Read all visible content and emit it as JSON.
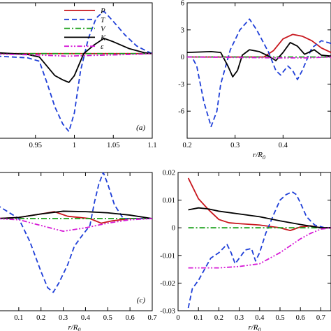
{
  "chart_data": [
    {
      "type": "line",
      "panel": "(a)",
      "xlabel": "",
      "ylabel": "",
      "xlim": [
        0.9,
        1.1
      ],
      "ylim": [
        -10,
        6
      ],
      "xticks": [
        0.95,
        1,
        1.05,
        1.1
      ],
      "yticks": [],
      "legend": {
        "placement": "top-right"
      },
      "series": [
        {
          "name": "P",
          "color": "#c8161d",
          "dash": "solid",
          "points": [
            [
              0.9,
              0
            ],
            [
              0.95,
              0
            ],
            [
              1.0,
              0
            ],
            [
              1.05,
              0
            ],
            [
              1.1,
              0
            ]
          ]
        },
        {
          "name": "T",
          "color": "#1f3fd8",
          "dash": "dashed",
          "points": [
            [
              0.9,
              -0.3
            ],
            [
              0.94,
              -0.5
            ],
            [
              0.955,
              -0.9
            ],
            [
              0.965,
              -3.5
            ],
            [
              0.975,
              -6.3
            ],
            [
              0.985,
              -8.3
            ],
            [
              0.993,
              -9.2
            ],
            [
              1.0,
              -7.0
            ],
            [
              1.008,
              -2.0
            ],
            [
              1.018,
              1.8
            ],
            [
              1.028,
              4.2
            ],
            [
              1.038,
              5.0
            ],
            [
              1.05,
              3.8
            ],
            [
              1.065,
              2.2
            ],
            [
              1.08,
              0.9
            ],
            [
              1.095,
              0.2
            ],
            [
              1.1,
              0
            ]
          ]
        },
        {
          "name": "V",
          "color": "#1aa01a",
          "dash": "dashdot",
          "points": [
            [
              0.9,
              0
            ],
            [
              0.95,
              0
            ],
            [
              1.0,
              0
            ],
            [
              1.05,
              0
            ],
            [
              1.1,
              0
            ]
          ]
        },
        {
          "name": "K",
          "color": "#000000",
          "dash": "solid",
          "points": [
            [
              0.9,
              0.1
            ],
            [
              0.94,
              -0.1
            ],
            [
              0.955,
              -0.4
            ],
            [
              0.965,
              -1.5
            ],
            [
              0.975,
              -2.6
            ],
            [
              0.985,
              -3.1
            ],
            [
              0.993,
              -3.4
            ],
            [
              1.0,
              -2.6
            ],
            [
              1.012,
              0.0
            ],
            [
              1.025,
              1.0
            ],
            [
              1.038,
              1.8
            ],
            [
              1.05,
              1.4
            ],
            [
              1.07,
              0.6
            ],
            [
              1.09,
              0.1
            ],
            [
              1.1,
              0
            ]
          ]
        },
        {
          "name": "ε",
          "color": "#d61ad6",
          "dash": "dashdotdot",
          "points": [
            [
              0.9,
              -0.05
            ],
            [
              0.95,
              -0.15
            ],
            [
              0.99,
              -0.3
            ],
            [
              1.03,
              -0.2
            ],
            [
              1.08,
              -0.08
            ],
            [
              1.1,
              0
            ]
          ]
        }
      ]
    },
    {
      "type": "line",
      "panel": "",
      "xlabel": "r/R0",
      "ylabel": "",
      "xlim": [
        0.2,
        0.5
      ],
      "ylim": [
        -9,
        6
      ],
      "xticks": [
        0.2,
        0.3,
        0.4
      ],
      "yticks": [
        -6,
        -3,
        0,
        3,
        6
      ],
      "series": [
        {
          "name": "P",
          "color": "#c8161d",
          "dash": "solid",
          "points": [
            [
              0.2,
              0
            ],
            [
              0.36,
              0
            ],
            [
              0.38,
              0.7
            ],
            [
              0.4,
              2.0
            ],
            [
              0.42,
              2.5
            ],
            [
              0.44,
              2.3
            ],
            [
              0.46,
              1.8
            ],
            [
              0.48,
              1.0
            ],
            [
              0.5,
              0.5
            ]
          ]
        },
        {
          "name": "T",
          "color": "#1f3fd8",
          "dash": "dashed",
          "points": [
            [
              0.2,
              0
            ],
            [
              0.21,
              0
            ],
            [
              0.22,
              -1.0
            ],
            [
              0.235,
              -5.0
            ],
            [
              0.25,
              -7.7
            ],
            [
              0.262,
              -6.0
            ],
            [
              0.27,
              -3.0
            ],
            [
              0.29,
              0.8
            ],
            [
              0.31,
              3.0
            ],
            [
              0.33,
              4.2
            ],
            [
              0.345,
              3.0
            ],
            [
              0.36,
              1.5
            ],
            [
              0.37,
              0.5
            ],
            [
              0.385,
              -1.5
            ],
            [
              0.395,
              -2.0
            ],
            [
              0.41,
              -1.0
            ],
            [
              0.42,
              -1.5
            ],
            [
              0.43,
              -2.5
            ],
            [
              0.44,
              -1.5
            ],
            [
              0.46,
              1.0
            ],
            [
              0.48,
              1.8
            ],
            [
              0.5,
              1.5
            ]
          ]
        },
        {
          "name": "V",
          "color": "#1aa01a",
          "dash": "dashdot",
          "points": [
            [
              0.2,
              0
            ],
            [
              0.3,
              0
            ],
            [
              0.4,
              0
            ],
            [
              0.5,
              0
            ]
          ]
        },
        {
          "name": "K",
          "color": "#000000",
          "dash": "solid",
          "points": [
            [
              0.2,
              0.5
            ],
            [
              0.25,
              0.6
            ],
            [
              0.27,
              0.5
            ],
            [
              0.285,
              -1.0
            ],
            [
              0.295,
              -2.2
            ],
            [
              0.305,
              -1.5
            ],
            [
              0.315,
              0.2
            ],
            [
              0.33,
              0.8
            ],
            [
              0.35,
              0.6
            ],
            [
              0.37,
              0.1
            ],
            [
              0.385,
              -0.4
            ],
            [
              0.4,
              0.5
            ],
            [
              0.415,
              1.6
            ],
            [
              0.43,
              1.2
            ],
            [
              0.445,
              0.3
            ],
            [
              0.465,
              0.8
            ],
            [
              0.48,
              0.2
            ],
            [
              0.5,
              0.1
            ]
          ]
        },
        {
          "name": "ε",
          "color": "#d61ad6",
          "dash": "dashdotdot",
          "points": [
            [
              0.2,
              0
            ],
            [
              0.3,
              -0.05
            ],
            [
              0.4,
              -0.1
            ],
            [
              0.45,
              -0.1
            ],
            [
              0.5,
              0
            ]
          ]
        }
      ]
    },
    {
      "type": "line",
      "panel": "(c)",
      "xlabel": "r/R0",
      "ylabel": "",
      "xlim": [
        0.0,
        0.7
      ],
      "ylim": [
        -0.04,
        0.02
      ],
      "xticks": [
        0.1,
        0.2,
        0.3,
        0.4,
        0.5,
        0.6,
        0.7
      ],
      "yticks": [],
      "series": [
        {
          "name": "P",
          "color": "#c8161d",
          "dash": "solid",
          "points": [
            [
              0.0,
              0.0
            ],
            [
              0.1,
              0.0005
            ],
            [
              0.2,
              0.002
            ],
            [
              0.26,
              0.003
            ],
            [
              0.32,
              0.001
            ],
            [
              0.42,
              0.0
            ],
            [
              0.47,
              -0.002
            ],
            [
              0.52,
              -0.001
            ],
            [
              0.6,
              0.0
            ],
            [
              0.7,
              0.0
            ]
          ]
        },
        {
          "name": "T",
          "color": "#1f3fd8",
          "dash": "dashed",
          "points": [
            [
              0.0,
              0.006
            ],
            [
              0.05,
              0.003
            ],
            [
              0.1,
              0.0
            ],
            [
              0.15,
              -0.01
            ],
            [
              0.2,
              -0.023
            ],
            [
              0.23,
              -0.03
            ],
            [
              0.255,
              -0.032
            ],
            [
              0.28,
              -0.028
            ],
            [
              0.32,
              -0.02
            ],
            [
              0.35,
              -0.012
            ],
            [
              0.38,
              -0.008
            ],
            [
              0.42,
              -0.003
            ],
            [
              0.44,
              0.007
            ],
            [
              0.46,
              0.015
            ],
            [
              0.48,
              0.02
            ],
            [
              0.5,
              0.015
            ],
            [
              0.53,
              0.006
            ],
            [
              0.57,
              0.0
            ],
            [
              0.62,
              0.0
            ],
            [
              0.7,
              0.0
            ]
          ]
        },
        {
          "name": "V",
          "color": "#1aa01a",
          "dash": "dashdot",
          "points": [
            [
              0.0,
              0
            ],
            [
              0.35,
              0
            ],
            [
              0.7,
              0
            ]
          ]
        },
        {
          "name": "K",
          "color": "#000000",
          "dash": "solid",
          "points": [
            [
              0.0,
              0.0
            ],
            [
              0.1,
              0.0005
            ],
            [
              0.2,
              0.002
            ],
            [
              0.3,
              0.0032
            ],
            [
              0.4,
              0.003
            ],
            [
              0.5,
              0.0025
            ],
            [
              0.6,
              0.0015
            ],
            [
              0.7,
              0.0
            ]
          ]
        },
        {
          "name": "ε",
          "color": "#d61ad6",
          "dash": "dashdotdot",
          "points": [
            [
              0.0,
              0.0
            ],
            [
              0.1,
              -0.0005
            ],
            [
              0.2,
              -0.003
            ],
            [
              0.3,
              -0.0055
            ],
            [
              0.4,
              -0.004
            ],
            [
              0.5,
              -0.002
            ],
            [
              0.6,
              -0.0005
            ],
            [
              0.7,
              0.0
            ]
          ]
        }
      ]
    },
    {
      "type": "line",
      "panel": "",
      "xlabel": "r/R0",
      "ylabel": "",
      "xlim": [
        0.0,
        0.75
      ],
      "ylim": [
        -0.03,
        0.02
      ],
      "xticks": [
        0,
        0.1,
        0.2,
        0.3,
        0.4,
        0.5,
        0.6,
        0.7
      ],
      "yticks": [
        -0.03,
        -0.02,
        -0.01,
        0,
        0.01,
        0.02
      ],
      "series": [
        {
          "name": "P",
          "color": "#c8161d",
          "dash": "solid",
          "points": [
            [
              0.05,
              0.018
            ],
            [
              0.1,
              0.0105
            ],
            [
              0.15,
              0.0065
            ],
            [
              0.2,
              0.003
            ],
            [
              0.25,
              0.0018
            ],
            [
              0.3,
              0.0015
            ],
            [
              0.4,
              0.001
            ],
            [
              0.45,
              0.0005
            ],
            [
              0.5,
              0.0
            ],
            [
              0.55,
              -0.001
            ],
            [
              0.6,
              0.0003
            ],
            [
              0.65,
              0.0007
            ],
            [
              0.7,
              0.0
            ],
            [
              0.75,
              0.0
            ]
          ]
        },
        {
          "name": "T",
          "color": "#1f3fd8",
          "dash": "dashed",
          "points": [
            [
              0.05,
              -0.029
            ],
            [
              0.07,
              -0.022
            ],
            [
              0.1,
              -0.019
            ],
            [
              0.13,
              -0.015
            ],
            [
              0.16,
              -0.011
            ],
            [
              0.2,
              -0.009
            ],
            [
              0.24,
              -0.006
            ],
            [
              0.26,
              -0.009
            ],
            [
              0.28,
              -0.013
            ],
            [
              0.3,
              -0.011
            ],
            [
              0.33,
              -0.008
            ],
            [
              0.36,
              -0.0075
            ],
            [
              0.38,
              -0.012
            ],
            [
              0.4,
              -0.009
            ],
            [
              0.43,
              -0.002
            ],
            [
              0.47,
              0.005
            ],
            [
              0.5,
              0.01
            ],
            [
              0.53,
              0.012
            ],
            [
              0.56,
              0.013
            ],
            [
              0.58,
              0.012
            ],
            [
              0.6,
              0.009
            ],
            [
              0.63,
              0.004
            ],
            [
              0.67,
              0.001
            ],
            [
              0.72,
              0.0
            ],
            [
              0.75,
              0.0
            ]
          ]
        },
        {
          "name": "V",
          "color": "#1aa01a",
          "dash": "dashdot",
          "points": [
            [
              0.05,
              0
            ],
            [
              0.4,
              0
            ],
            [
              0.75,
              0
            ]
          ]
        },
        {
          "name": "K",
          "color": "#000000",
          "dash": "solid",
          "points": [
            [
              0.05,
              0.0065
            ],
            [
              0.1,
              0.0072
            ],
            [
              0.15,
              0.0068
            ],
            [
              0.2,
              0.006
            ],
            [
              0.3,
              0.005
            ],
            [
              0.4,
              0.004
            ],
            [
              0.5,
              0.0025
            ],
            [
              0.6,
              0.0012
            ],
            [
              0.7,
              0.0
            ],
            [
              0.75,
              0.0
            ]
          ]
        },
        {
          "name": "ε",
          "color": "#d61ad6",
          "dash": "dashdotdot",
          "points": [
            [
              0.05,
              -0.0145
            ],
            [
              0.1,
              -0.0145
            ],
            [
              0.2,
              -0.0145
            ],
            [
              0.3,
              -0.014
            ],
            [
              0.4,
              -0.013
            ],
            [
              0.5,
              -0.009
            ],
            [
              0.55,
              -0.0065
            ],
            [
              0.6,
              -0.004
            ],
            [
              0.65,
              -0.002
            ],
            [
              0.7,
              -0.0005
            ],
            [
              0.75,
              0.0
            ]
          ]
        }
      ]
    }
  ]
}
